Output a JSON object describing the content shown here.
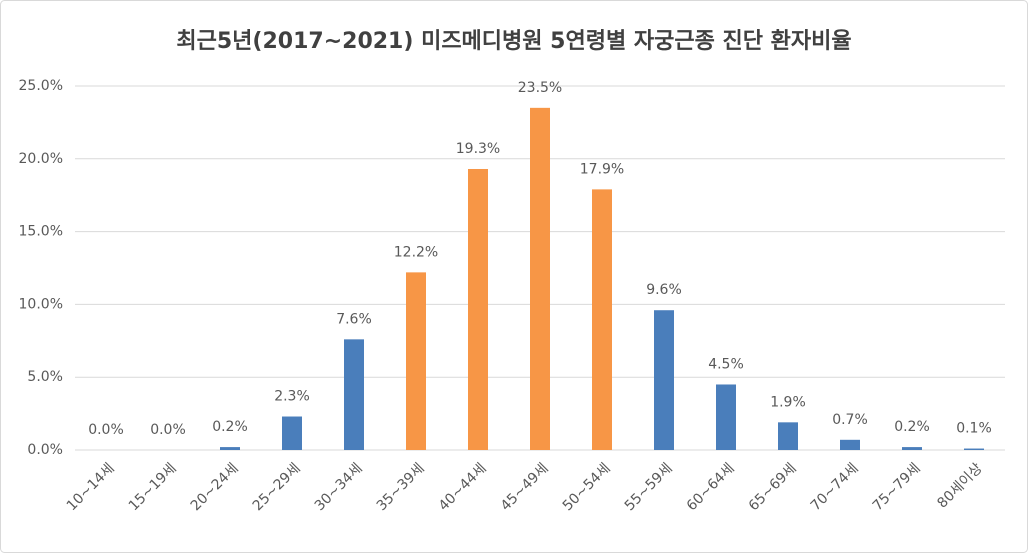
{
  "chart_data": {
    "type": "bar",
    "title": "최근5년(2017~2021) 미즈메디병원  5연령별 자궁근종 진단 환자비율",
    "categories": [
      "10~14세",
      "15~19세",
      "20~24세",
      "25~29세",
      "30~34세",
      "35~39세",
      "40~44세",
      "45~49세",
      "50~54세",
      "55~59세",
      "60~64세",
      "65~69세",
      "70~74세",
      "75~79세",
      "80세이상"
    ],
    "values": [
      0.0,
      0.0,
      0.2,
      2.3,
      7.6,
      12.2,
      19.3,
      23.5,
      17.9,
      9.6,
      4.5,
      1.9,
      0.7,
      0.2,
      0.1
    ],
    "value_labels": [
      "0.0%",
      "0.0%",
      "0.2%",
      "2.3%",
      "7.6%",
      "12.2%",
      "19.3%",
      "23.5%",
      "17.9%",
      "9.6%",
      "4.5%",
      "1.9%",
      "0.7%",
      "0.2%",
      "0.1%"
    ],
    "colors": [
      "#4a7ebb",
      "#4a7ebb",
      "#4a7ebb",
      "#4a7ebb",
      "#4a7ebb",
      "#f79646",
      "#f79646",
      "#f79646",
      "#f79646",
      "#4a7ebb",
      "#4a7ebb",
      "#4a7ebb",
      "#4a7ebb",
      "#4a7ebb",
      "#4a7ebb"
    ],
    "ylim": [
      0,
      25
    ],
    "yticks": [
      {
        "value": 0,
        "label": "0.0%"
      },
      {
        "value": 5,
        "label": "5.0%"
      },
      {
        "value": 10,
        "label": "10.0%"
      },
      {
        "value": 15,
        "label": "15.0%"
      },
      {
        "value": 20,
        "label": "20.0%"
      },
      {
        "value": 25,
        "label": "25.0%"
      }
    ],
    "grid": true
  }
}
